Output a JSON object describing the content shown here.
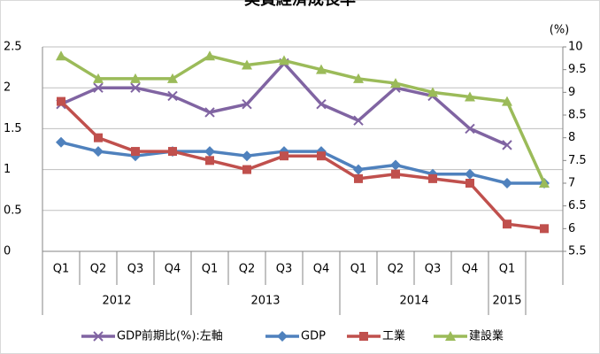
{
  "chart_data": {
    "type": "line",
    "title": "実質経済成長率",
    "y2_unit_label": "(%)",
    "categories": [
      "Q1",
      "Q2",
      "Q3",
      "Q4",
      "Q1",
      "Q2",
      "Q3",
      "Q4",
      "Q1",
      "Q2",
      "Q3",
      "Q4",
      "Q1",
      null
    ],
    "category_groups": [
      "2012",
      "2012",
      "2012",
      "2012",
      "2013",
      "2013",
      "2013",
      "2013",
      "2014",
      "2014",
      "2014",
      "2014",
      "2015",
      null
    ],
    "ylim": [
      0,
      2.5
    ],
    "yticks": [
      0,
      0.5,
      1,
      1.5,
      2,
      2.5
    ],
    "y2lim": [
      5.5,
      10
    ],
    "y2ticks": [
      5.5,
      6,
      6.5,
      7,
      7.5,
      8,
      8.5,
      9,
      9.5,
      10
    ],
    "grid": true,
    "legend": "bottom",
    "series": [
      {
        "name": "GDP前期比(%):左軸",
        "color": "#8064a2",
        "marker": "x",
        "axis": "y",
        "values": [
          1.8,
          2.0,
          2.0,
          1.9,
          1.7,
          1.8,
          2.3,
          1.8,
          1.6,
          2.0,
          1.9,
          1.5,
          1.3,
          null
        ]
      },
      {
        "name": "GDP",
        "color": "#4f81bd",
        "marker": "diamond",
        "axis": "y2",
        "values": [
          7.9,
          7.7,
          7.6,
          7.7,
          7.7,
          7.6,
          7.7,
          7.7,
          7.3,
          7.4,
          7.2,
          7.2,
          7.0,
          7.0
        ]
      },
      {
        "name": "工業",
        "color": "#c0504d",
        "marker": "square",
        "axis": "y2",
        "values": [
          8.8,
          8.0,
          7.7,
          7.7,
          7.5,
          7.3,
          7.6,
          7.6,
          7.1,
          7.2,
          7.1,
          7.0,
          6.1,
          6.0
        ]
      },
      {
        "name": "建設業",
        "color": "#9bbb59",
        "marker": "triangle",
        "axis": "y2",
        "values": [
          9.8,
          9.3,
          9.3,
          9.3,
          9.8,
          9.6,
          9.7,
          9.5,
          9.3,
          9.2,
          9.0,
          8.9,
          8.8,
          7.0
        ]
      }
    ]
  }
}
